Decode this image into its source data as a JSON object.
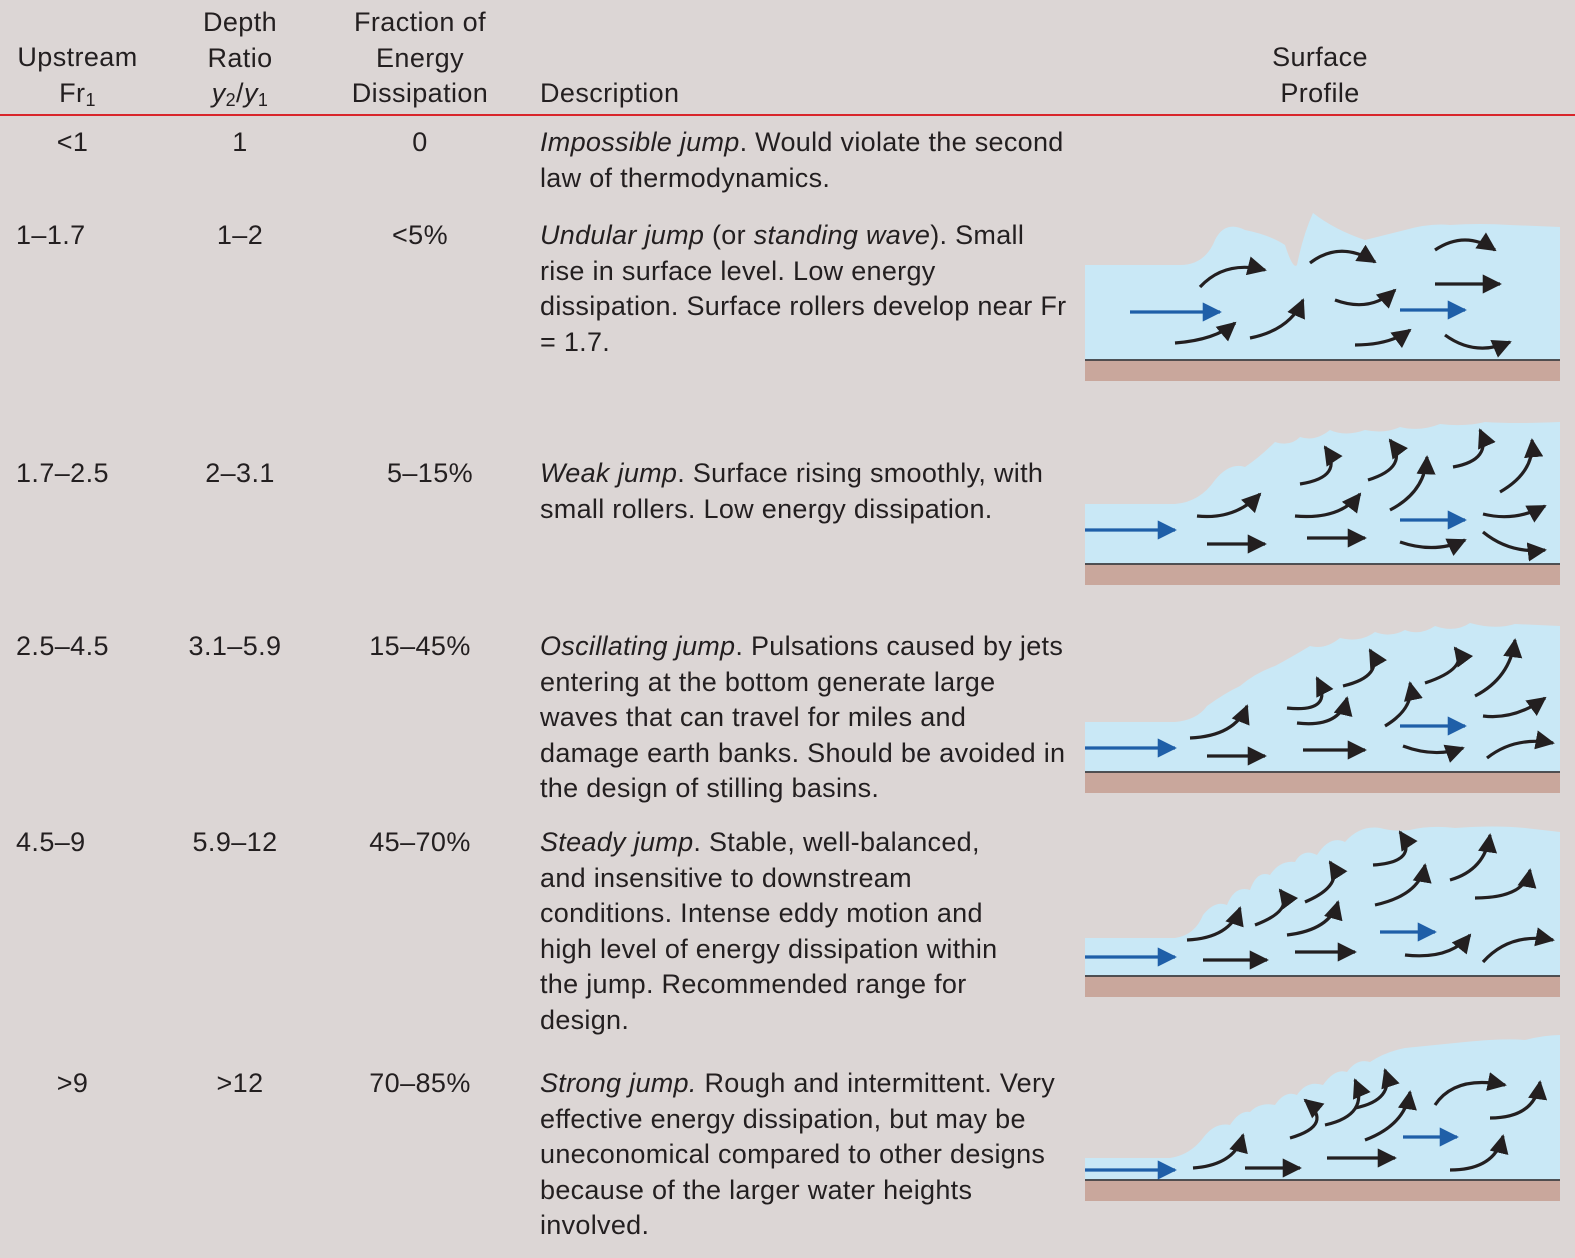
{
  "headers": {
    "fr_line1": "Upstream",
    "fr_line2": "Fr",
    "fr_sub": "1",
    "ratio_line1": "Depth",
    "ratio_line2": "Ratio",
    "ratio_y2": "y",
    "ratio_y2_sub": "2",
    "ratio_slash": "/",
    "ratio_y1": "y",
    "ratio_y1_sub": "1",
    "energy_line1": "Fraction of",
    "energy_line2": "Energy",
    "energy_line3": "Dissipation",
    "description": "Description",
    "profile_line1": "Surface",
    "profile_line2": "Profile"
  },
  "rows": [
    {
      "fr": "<1",
      "ratio": "1",
      "energy": "0",
      "desc_italic": "Impossible jump",
      "desc_rest": ". Would violate the second law of thermodynamics."
    },
    {
      "fr": "1–1.7",
      "ratio": "1–2",
      "energy": "<5%",
      "desc_italic": "Undular jump",
      "desc_mid1": " (or ",
      "desc_italic2": "standing wave",
      "desc_rest": "). Small rise in surface level. Low energy dissipation. Surface rollers develop near Fr = 1.7."
    },
    {
      "fr": "1.7–2.5",
      "ratio": "2–3.1",
      "energy": "5–15%",
      "desc_italic": "Weak jump",
      "desc_rest": ". Surface rising smoothly, with small rollers. Low energy dissipation."
    },
    {
      "fr": "2.5–4.5",
      "ratio": "3.1–5.9",
      "energy": "15–45%",
      "desc_italic": "Oscillating jump",
      "desc_rest": ". Pulsations caused by jets entering at the bottom generate large waves that can travel for miles and damage earth banks. Should be avoided in the design of stilling basins."
    },
    {
      "fr": "4.5–9",
      "ratio": "5.9–12",
      "energy": "45–70%",
      "desc_italic": "Steady jump",
      "desc_rest": ". Stable, well-balanced, and insensitive to downstream conditions. Intense eddy motion and high level of energy dissipation within the jump. Recommended range for design."
    },
    {
      "fr": ">9",
      "ratio": ">12",
      "energy": "70–85%",
      "desc_italic": "Strong jump.",
      "desc_rest": " Rough and intermittent. Very effective energy dissipation, but may be uneconomical compared to other designs because of the larger water heights involved."
    }
  ],
  "colors": {
    "background": "#dcd6d5",
    "rule": "#d9262b",
    "water": "#c9e8f6",
    "bed": "#c9a79c",
    "blue_arrow": "#1f5fa8",
    "black_arrow": "#231f20"
  },
  "icons": [
    "blue-arrow-icon",
    "black-arrow-icon"
  ]
}
